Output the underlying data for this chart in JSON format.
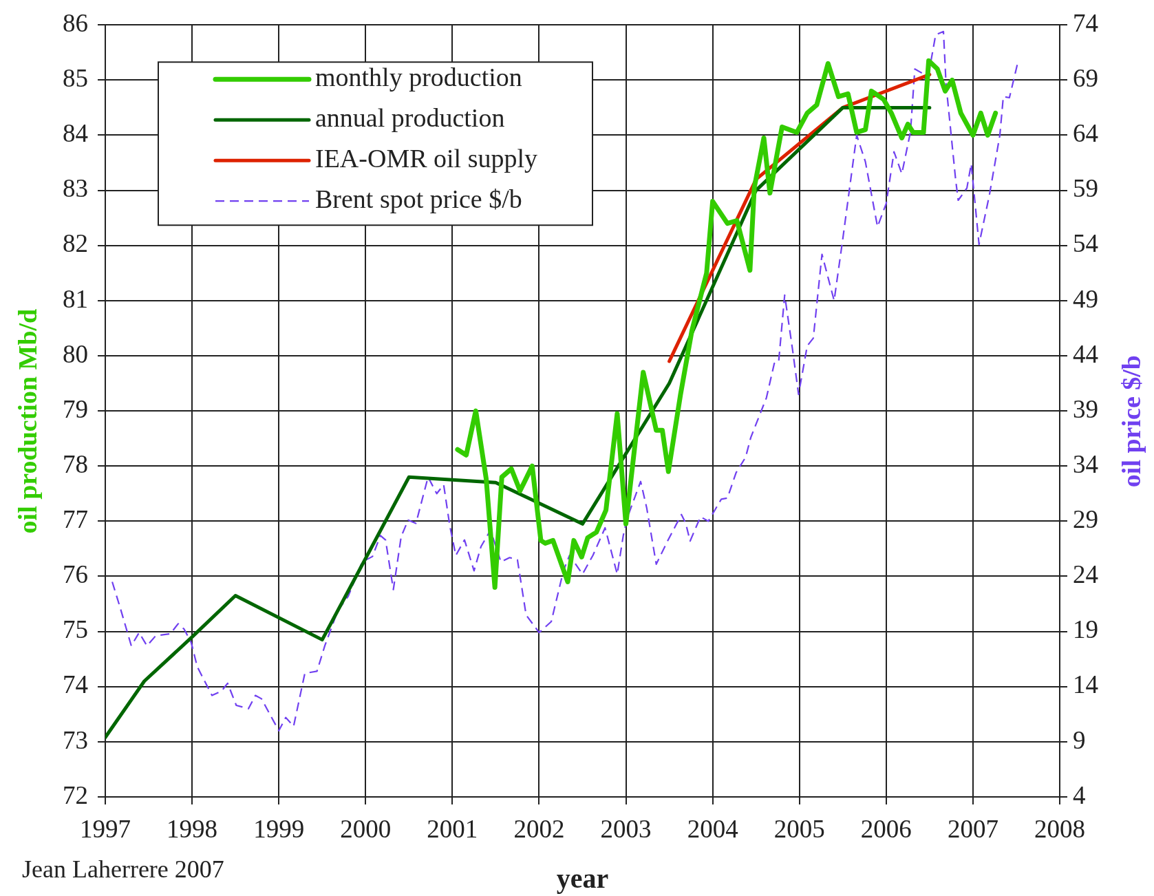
{
  "chart_data": {
    "type": "line",
    "xlabel": "year",
    "ylabel": "oil production Mb/d",
    "y2label": "oil price $/b",
    "annotations": [
      "Jean Laherrere 2007"
    ],
    "xlim": [
      1997,
      2008
    ],
    "xticks": [
      1997,
      1998,
      1999,
      2000,
      2001,
      2002,
      2003,
      2004,
      2005,
      2006,
      2007,
      2008
    ],
    "ylim": [
      72,
      86
    ],
    "yticks": [
      72,
      73,
      74,
      75,
      76,
      77,
      78,
      79,
      80,
      81,
      82,
      83,
      84,
      85,
      86
    ],
    "y2lim": [
      4,
      74
    ],
    "y2ticks": [
      4,
      9,
      14,
      19,
      24,
      29,
      34,
      39,
      44,
      49,
      54,
      59,
      64,
      69,
      74
    ],
    "grid": true,
    "legend": "top left",
    "marker": "none",
    "series": [
      {
        "name": "monthly production",
        "color": "#33cc00",
        "x": [
          2001.06,
          2001.16,
          2001.27,
          2001.39,
          2001.49,
          2001.57,
          2001.68,
          2001.78,
          2001.92,
          2002.02,
          2002.07,
          2002.16,
          2002.33,
          2002.4,
          2002.49,
          2002.56,
          2002.66,
          2002.77,
          2002.9,
          2003.0,
          2003.2,
          2003.35,
          2003.42,
          2003.49,
          2003.63,
          2003.76,
          2003.93,
          2004.0,
          2004.17,
          2004.28,
          2004.43,
          2004.48,
          2004.59,
          2004.66,
          2004.8,
          2004.97,
          2005.09,
          2005.2,
          2005.33,
          2005.45,
          2005.56,
          2005.66,
          2005.76,
          2005.83,
          2005.97,
          2006.06,
          2006.18,
          2006.25,
          2006.31,
          2006.43,
          2006.49,
          2006.59,
          2006.68,
          2006.76,
          2006.86,
          2007.0,
          2007.09,
          2007.17,
          2007.26
        ],
        "values": [
          78.3,
          78.2,
          79.0,
          77.77,
          75.8,
          77.8,
          77.95,
          77.55,
          78.0,
          76.65,
          76.6,
          76.65,
          75.9,
          76.65,
          76.35,
          76.7,
          76.8,
          77.2,
          78.95,
          76.95,
          79.7,
          78.65,
          78.65,
          77.9,
          79.3,
          80.45,
          81.5,
          82.8,
          82.4,
          82.45,
          81.55,
          83.05,
          83.95,
          82.95,
          84.15,
          84.05,
          84.4,
          84.55,
          85.3,
          84.7,
          84.75,
          84.05,
          84.1,
          84.8,
          84.65,
          84.4,
          83.95,
          84.2,
          84.05,
          84.05,
          85.35,
          85.2,
          84.8,
          85.0,
          84.4,
          84.0,
          84.4,
          84.0,
          84.4
        ]
      },
      {
        "name": "annual production",
        "color": "#006600",
        "x": [
          1997,
          1997.45,
          1998,
          1998.5,
          1999.5,
          2000.5,
          2001.5,
          2002.5,
          2003.5,
          2004.5,
          2005.5,
          2006.5
        ],
        "values": [
          73.08,
          74.1,
          74.9,
          75.65,
          74.85,
          77.8,
          77.7,
          76.95,
          79.5,
          83.0,
          84.5,
          84.5
        ]
      },
      {
        "name": "IEA-OMR oil supply",
        "color": "#dd2200",
        "x": [
          2003.5,
          2004.5,
          2005.5,
          2006.5
        ],
        "values": [
          79.9,
          83.2,
          84.5,
          85.1
        ]
      },
      {
        "name": "Brent spot price $/b",
        "color": "#7040f0",
        "axis": "y2",
        "line_style": "dashed",
        "x": [
          1997.08,
          1997.17,
          1997.3,
          1997.39,
          1997.48,
          1997.58,
          1997.75,
          1997.84,
          1997.91,
          1997.99,
          1998.06,
          1998.23,
          1998.34,
          1998.41,
          1998.51,
          1998.65,
          1998.73,
          1998.8,
          1999.0,
          1999.08,
          1999.17,
          1999.3,
          1999.44,
          1999.53,
          1999.68,
          1999.8,
          1999.96,
          2000.08,
          2000.17,
          2000.23,
          2000.32,
          2000.41,
          2000.49,
          2000.58,
          2000.72,
          2000.82,
          2000.9,
          2000.97,
          2001.04,
          2001.14,
          2001.25,
          2001.33,
          2001.44,
          2001.56,
          2001.66,
          2001.75,
          2001.85,
          2002.0,
          2002.14,
          2002.28,
          2002.35,
          2002.5,
          2002.62,
          2002.76,
          2002.9,
          2002.97,
          2003.02,
          2003.17,
          2003.24,
          2003.35,
          2003.48,
          2003.64,
          2003.69,
          2003.74,
          2003.86,
          2003.95,
          2004.1,
          2004.17,
          2004.27,
          2004.38,
          2004.44,
          2004.62,
          2004.71,
          2004.76,
          2004.83,
          2004.92,
          2004.99,
          2005.09,
          2005.16,
          2005.26,
          2005.4,
          2005.5,
          2005.66,
          2005.76,
          2005.9,
          2006.0,
          2006.09,
          2006.18,
          2006.28,
          2006.33,
          2006.42,
          2006.47,
          2006.57,
          2006.66,
          2006.69,
          2006.8,
          2006.83,
          2006.93,
          2006.98,
          2007.07,
          2007.19,
          2007.31,
          2007.35,
          2007.42,
          2007.52
        ],
        "values": [
          23.5,
          21.2,
          17.7,
          18.9,
          17.7,
          18.6,
          18.8,
          19.7,
          19.2,
          18.0,
          15.8,
          13.2,
          13.6,
          14.3,
          12.3,
          12.0,
          13.2,
          12.9,
          10.0,
          11.2,
          10.4,
          15.2,
          15.4,
          17.7,
          20.9,
          22.2,
          25.3,
          25.8,
          27.7,
          27.3,
          22.8,
          27.6,
          29.1,
          28.8,
          33.0,
          31.5,
          32.3,
          28.6,
          25.9,
          27.3,
          24.5,
          26.7,
          28.2,
          25.3,
          25.7,
          25.5,
          20.5,
          18.9,
          19.9,
          24.5,
          25.9,
          24.2,
          25.9,
          28.4,
          24.2,
          27.7,
          29.4,
          32.6,
          30.2,
          25.1,
          27.2,
          29.6,
          28.8,
          27.2,
          29.4,
          29.0,
          31.0,
          31.1,
          33.4,
          34.8,
          36.6,
          40.2,
          43.3,
          43.4,
          49.5,
          44.6,
          40.5,
          44.9,
          45.6,
          53.2,
          49.0,
          54.6,
          64.0,
          61.6,
          55.7,
          57.8,
          62.5,
          60.5,
          64.3,
          70.0,
          69.6,
          68.7,
          73.1,
          73.4,
          68.6,
          60.0,
          58.1,
          59.2,
          61.4,
          54.1,
          58.6,
          64.0,
          67.5,
          67.4,
          70.7
        ]
      }
    ]
  }
}
